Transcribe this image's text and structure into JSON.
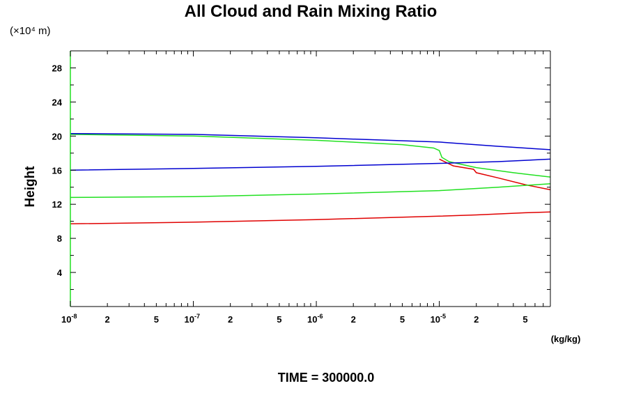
{
  "chart_data": {
    "type": "line",
    "title": "All Cloud and Rain Mixing Ratio",
    "ylabel": "Height",
    "y_unit": "(×10⁴ m)",
    "x_unit": "(kg/kg)",
    "footer": "TIME = 300000.0",
    "x_scale": "log",
    "xlim": [
      1e-08,
      8e-05
    ],
    "ylim": [
      0,
      30
    ],
    "y_ticks": [
      {
        "value": 4,
        "label": "4"
      },
      {
        "value": 8,
        "label": "8"
      },
      {
        "value": 12,
        "label": "12"
      },
      {
        "value": 16,
        "label": "16"
      },
      {
        "value": 20,
        "label": "20"
      },
      {
        "value": 24,
        "label": "24"
      },
      {
        "value": 28,
        "label": "28"
      }
    ],
    "x_ticks": [
      {
        "value": 1e-08,
        "base": "10",
        "exp": "-8"
      },
      {
        "value": 2e-08,
        "label": "2"
      },
      {
        "value": 5e-08,
        "label": "5"
      },
      {
        "value": 1e-07,
        "base": "10",
        "exp": "-7"
      },
      {
        "value": 2e-07,
        "label": "2"
      },
      {
        "value": 5e-07,
        "label": "5"
      },
      {
        "value": 1e-06,
        "base": "10",
        "exp": "-6"
      },
      {
        "value": 2e-06,
        "label": "2"
      },
      {
        "value": 5e-06,
        "label": "5"
      },
      {
        "value": 1e-05,
        "base": "10",
        "exp": "-5"
      },
      {
        "value": 2e-05,
        "label": "2"
      },
      {
        "value": 5e-05,
        "label": "5"
      }
    ],
    "series": [
      {
        "color": "#e00000",
        "points": [
          [
            1e-08,
            9.7
          ],
          [
            1e-07,
            9.9
          ],
          [
            1e-06,
            10.2
          ],
          [
            1e-05,
            10.6
          ],
          [
            2e-05,
            10.75
          ],
          [
            5e-05,
            11.0
          ],
          [
            8e-05,
            11.1
          ]
        ]
      },
      {
        "color": "#e00000",
        "points": [
          [
            1e-05,
            17.3
          ],
          [
            1.3e-05,
            16.5
          ],
          [
            1.9e-05,
            16.1
          ],
          [
            2e-05,
            15.7
          ],
          [
            3e-05,
            15.1
          ],
          [
            5e-05,
            14.3
          ],
          [
            8e-05,
            13.7
          ]
        ]
      },
      {
        "color": "#20e020",
        "points": [
          [
            1e-08,
            12.8
          ],
          [
            1e-07,
            12.9
          ],
          [
            1e-06,
            13.2
          ],
          [
            1e-05,
            13.6
          ],
          [
            3e-05,
            14.0
          ],
          [
            8e-05,
            14.4
          ]
        ]
      },
      {
        "color": "#20e020",
        "points": [
          [
            1e-08,
            20.2
          ],
          [
            1e-07,
            20.0
          ],
          [
            1e-06,
            19.5
          ],
          [
            5e-06,
            19.0
          ],
          [
            9e-06,
            18.6
          ],
          [
            1e-05,
            18.3
          ],
          [
            1.05e-05,
            17.5
          ],
          [
            1.2e-05,
            17.0
          ],
          [
            2e-05,
            16.3
          ],
          [
            4e-05,
            15.7
          ],
          [
            8e-05,
            15.2
          ]
        ]
      },
      {
        "color": "#0000d0",
        "points": [
          [
            1e-08,
            16.0
          ],
          [
            1e-07,
            16.2
          ],
          [
            1e-06,
            16.45
          ],
          [
            1e-05,
            16.8
          ],
          [
            3e-05,
            17.0
          ],
          [
            8e-05,
            17.3
          ]
        ]
      },
      {
        "color": "#0000d0",
        "points": [
          [
            1e-08,
            20.3
          ],
          [
            1e-07,
            20.2
          ],
          [
            1e-06,
            19.8
          ],
          [
            1e-05,
            19.3
          ],
          [
            3e-05,
            18.8
          ],
          [
            8e-05,
            18.4
          ]
        ]
      }
    ],
    "colors": {
      "axis": "#000000",
      "left_axis": "#20e020",
      "background": "#ffffff"
    }
  }
}
